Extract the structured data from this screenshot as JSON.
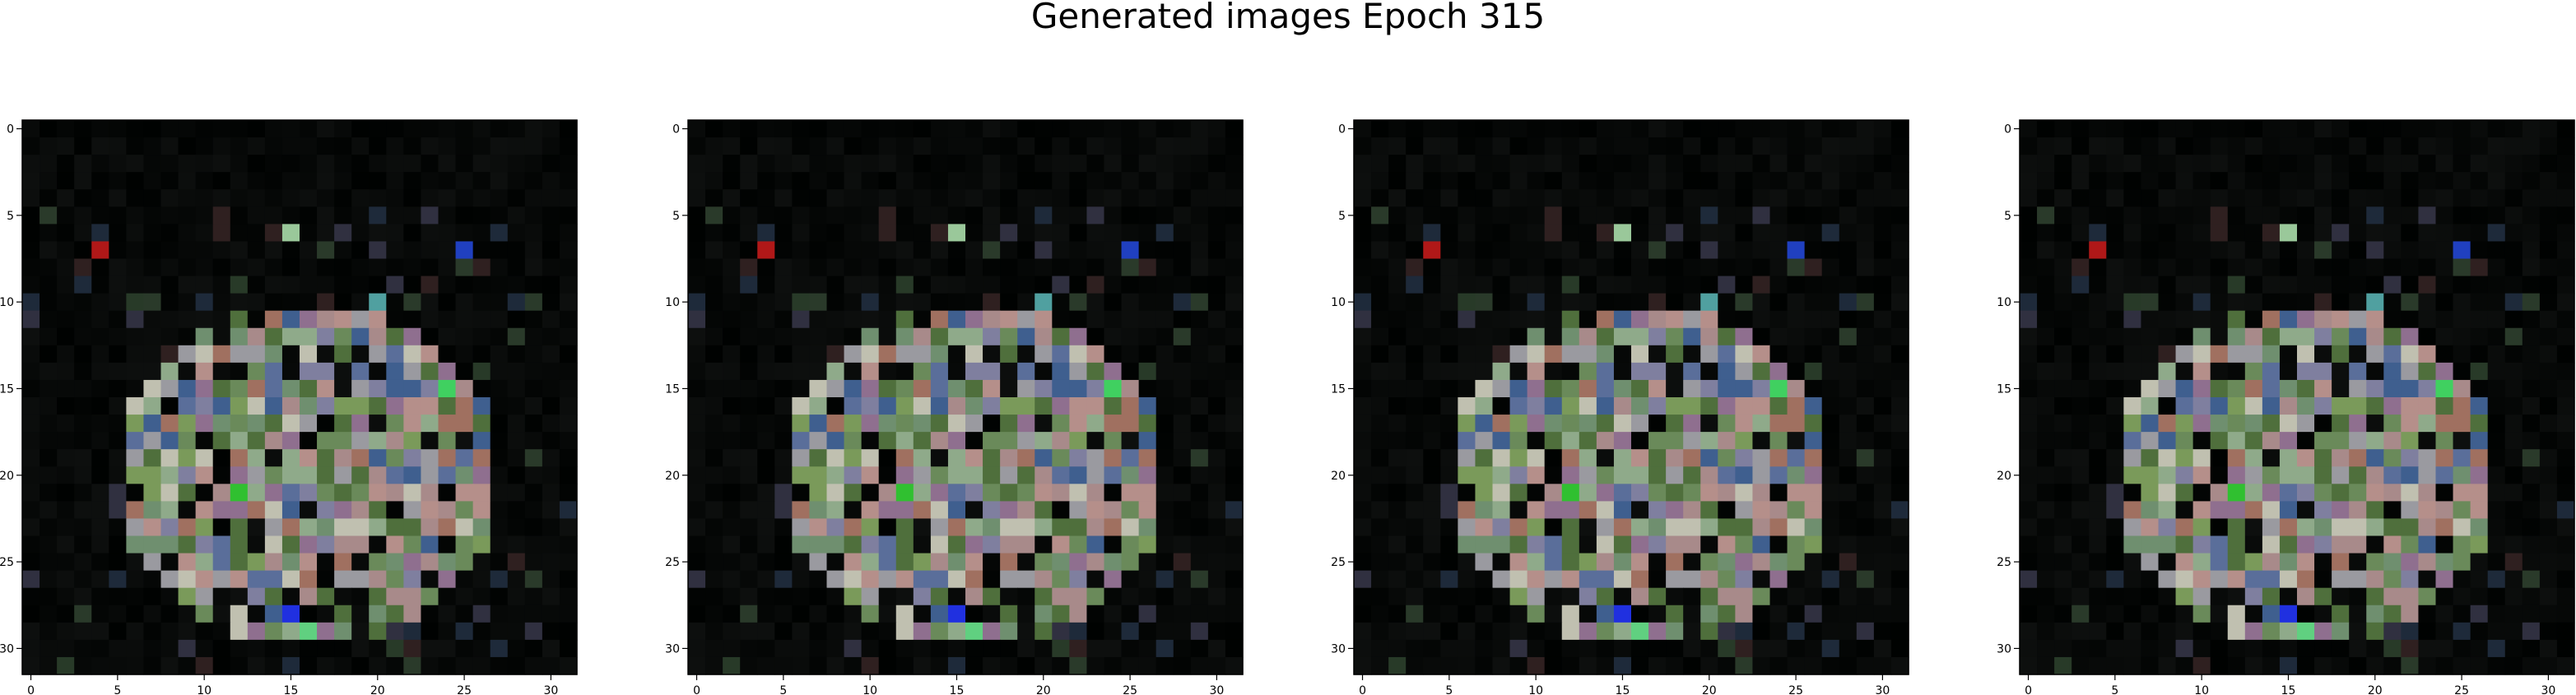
{
  "figure": {
    "title": "Generated images Epoch 315"
  },
  "chart_data": [
    {
      "type": "heatmap",
      "title": "",
      "grid_size": [
        32,
        32
      ],
      "x_ticks": [
        "0",
        "5",
        "10",
        "15",
        "20",
        "25",
        "30"
      ],
      "y_ticks": [
        "0",
        "5",
        "10",
        "15",
        "20",
        "25",
        "30"
      ],
      "xlim": [
        -0.5,
        31.5
      ],
      "ylim": [
        31.5,
        -0.5
      ]
    },
    {
      "type": "heatmap",
      "title": "",
      "grid_size": [
        32,
        32
      ],
      "x_ticks": [
        "0",
        "5",
        "10",
        "15",
        "20",
        "25",
        "30"
      ],
      "y_ticks": [
        "0",
        "5",
        "10",
        "15",
        "20",
        "25",
        "30"
      ],
      "xlim": [
        -0.5,
        31.5
      ],
      "ylim": [
        31.5,
        -0.5
      ]
    },
    {
      "type": "heatmap",
      "title": "",
      "grid_size": [
        32,
        32
      ],
      "x_ticks": [
        "0",
        "5",
        "10",
        "15",
        "20",
        "25",
        "30"
      ],
      "y_ticks": [
        "0",
        "5",
        "10",
        "15",
        "20",
        "25",
        "30"
      ],
      "xlim": [
        -0.5,
        31.5
      ],
      "ylim": [
        31.5,
        -0.5
      ]
    },
    {
      "type": "heatmap",
      "title": "",
      "grid_size": [
        32,
        32
      ],
      "x_ticks": [
        "0",
        "5",
        "10",
        "15",
        "20",
        "25",
        "30"
      ],
      "y_ticks": [
        "0",
        "5",
        "10",
        "15",
        "20",
        "25",
        "30"
      ],
      "xlim": [
        -0.5,
        31.5
      ],
      "ylim": [
        31.5,
        -0.5
      ]
    }
  ]
}
